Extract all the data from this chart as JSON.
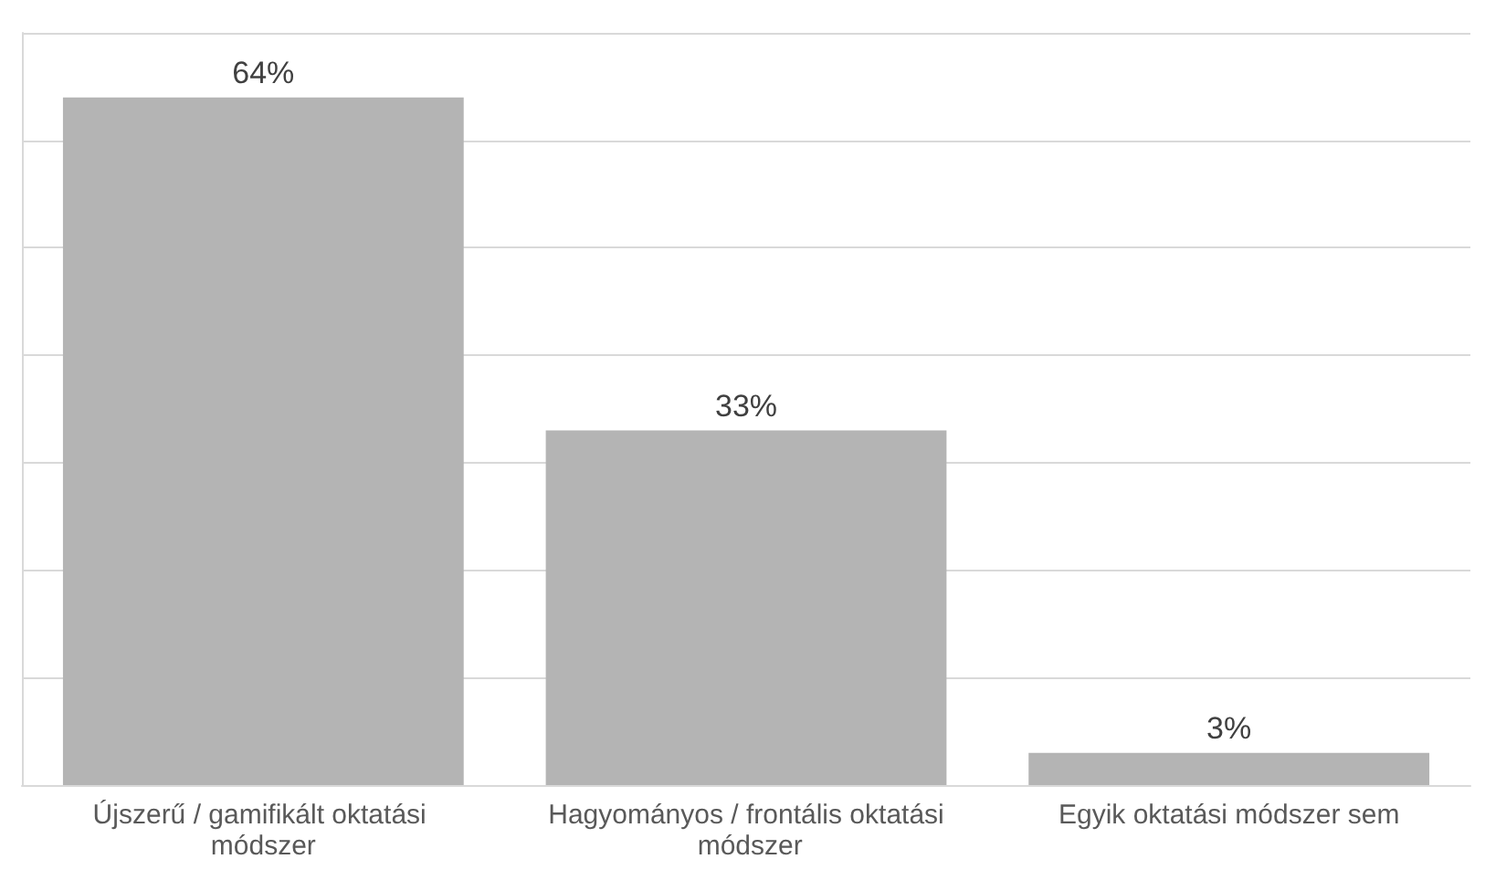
{
  "chart_data": {
    "type": "bar",
    "categories": [
      "Újszerű / gamifikált oktatási módszer",
      "Hagyományos / frontális oktatási módszer",
      "Egyik oktatási módszer sem"
    ],
    "values": [
      64,
      33,
      3
    ],
    "color": "#b4b4b4",
    "value_labels": [
      "64%",
      "33%",
      "3%"
    ],
    "ylim": [
      0,
      70
    ],
    "yticks": [
      {
        "value": 0,
        "label": null
      },
      {
        "value": 10,
        "label": null
      },
      {
        "value": 20,
        "label": null
      },
      {
        "value": 30,
        "label": null
      },
      {
        "value": 40,
        "label": null
      },
      {
        "value": 50,
        "label": null
      },
      {
        "value": 60,
        "label": null
      },
      {
        "value": 70,
        "label": null
      }
    ],
    "grid": "y",
    "tick_labels": "x"
  }
}
